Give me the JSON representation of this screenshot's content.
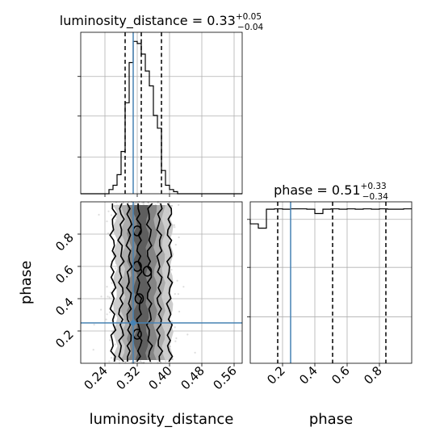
{
  "chart_data": [
    {
      "panel": "luminosity_distance-marginal",
      "type": "step-histogram",
      "title": {
        "prefix": "luminosity_distance = 0.33",
        "sup": "+0.05",
        "sub": "−0.04"
      },
      "xlim": [
        0.18,
        0.58
      ],
      "bin_edges": [
        0.18,
        0.19,
        0.2,
        0.21,
        0.22,
        0.23,
        0.24,
        0.25,
        0.26,
        0.27,
        0.28,
        0.29,
        0.3,
        0.31,
        0.32,
        0.33,
        0.34,
        0.35,
        0.36,
        0.37,
        0.38,
        0.39,
        0.4,
        0.41,
        0.42,
        0.43,
        0.44,
        0.45,
        0.46,
        0.47,
        0.48,
        0.49,
        0.5,
        0.51,
        0.52,
        0.53,
        0.54,
        0.55,
        0.56,
        0.57,
        0.58
      ],
      "counts": [
        0,
        0,
        0,
        0,
        0,
        0,
        0,
        2,
        4,
        9,
        20,
        43,
        62,
        72,
        71,
        66,
        58,
        51,
        37,
        31,
        11,
        4,
        2,
        1,
        0,
        0,
        0,
        0,
        0,
        0,
        0,
        0,
        0,
        0,
        0,
        0,
        0,
        0,
        0,
        0
      ],
      "quantiles": [
        0.29,
        0.33,
        0.38
      ],
      "truth": 0.31,
      "grid": true
    },
    {
      "panel": "luminosity_distance-vs-phase",
      "type": "scatter-contour",
      "x_param": "luminosity_distance",
      "y_param": "phase",
      "xlim": [
        0.18,
        0.58
      ],
      "ylim": [
        0.0,
        1.0
      ],
      "truth": {
        "x": 0.31,
        "y": 0.25
      },
      "x_spread": {
        "center": 0.33,
        "sigma": 0.035
      },
      "contour_x_levels": [
        0.26,
        0.28,
        0.3,
        0.325,
        0.35,
        0.375,
        0.4
      ],
      "grid": true
    },
    {
      "panel": "phase-marginal",
      "type": "step-histogram",
      "title": {
        "prefix": "phase = 0.51",
        "sup": "+0.33",
        "sub": "−0.34"
      },
      "xlim": [
        0.0,
        1.0
      ],
      "bin_edges": [
        0.0,
        0.05,
        0.1,
        0.15,
        0.2,
        0.25,
        0.3,
        0.35,
        0.4,
        0.45,
        0.5,
        0.55,
        0.6,
        0.65,
        0.7,
        0.75,
        0.8,
        0.85,
        0.9,
        0.95,
        1.0
      ],
      "counts": [
        0.9,
        0.89,
        0.92,
        0.93,
        0.92,
        0.93,
        0.93,
        0.92,
        0.94,
        0.92,
        0.93,
        0.92,
        0.93,
        0.92,
        0.93,
        0.92,
        0.93,
        0.92,
        0.92,
        0.93
      ],
      "quantiles": [
        0.17,
        0.51,
        0.84
      ],
      "truth": 0.25,
      "grid": true
    }
  ],
  "axes": {
    "luminosity_distance": {
      "label": "luminosity_distance",
      "ticks": [
        0.24,
        0.32,
        0.4,
        0.48,
        0.56
      ],
      "tick_labels": [
        "0.24",
        "0.32",
        "0.40",
        "0.48",
        "0.56"
      ]
    },
    "phase": {
      "label": "phase",
      "ticks": [
        0.2,
        0.4,
        0.6,
        0.8
      ],
      "tick_labels": [
        "0.2",
        "0.4",
        "0.6",
        "0.8"
      ]
    }
  },
  "colors": {
    "truth": "#4682b4",
    "histogram": "#000000",
    "quantile": "#000000",
    "grid": "#b0b0b0",
    "contour": "#000000",
    "points": "#9e9e9e"
  }
}
